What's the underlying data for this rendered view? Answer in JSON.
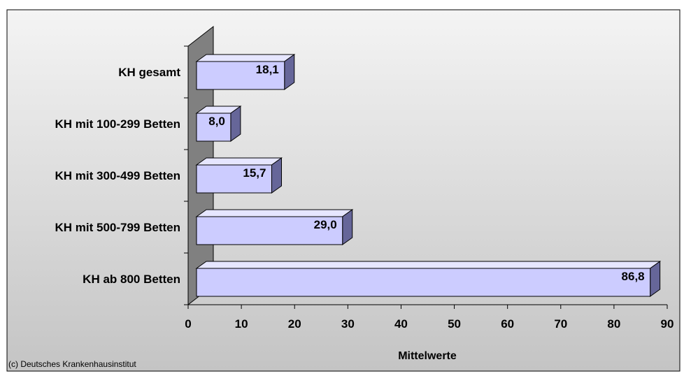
{
  "chart_data": {
    "type": "bar",
    "orientation": "horizontal",
    "style": "3d",
    "categories": [
      "KH gesamt",
      "KH mit 100-299 Betten",
      "KH mit 300-499 Betten",
      "KH mit 500-799 Betten",
      "KH ab 800 Betten"
    ],
    "values": [
      18.1,
      8.0,
      15.7,
      29.0,
      86.8
    ],
    "data_labels": [
      "18,1",
      "8,0",
      "15,7",
      "29,0",
      "86,8"
    ],
    "xlabel": "Mittelwerte",
    "xlim": [
      0,
      90
    ],
    "xticks": [
      0,
      10,
      20,
      30,
      40,
      50,
      60,
      70,
      80,
      90
    ],
    "grid": false,
    "legend": "none",
    "colors": {
      "bar_front": "#ccccff",
      "bar_top": "#e6e6ff",
      "bar_side": "#666699",
      "back_wall": "#808080",
      "plot_bg_top": "#f4f4f4",
      "plot_bg_bottom": "#c4c4c4"
    }
  },
  "footer": {
    "copyright": "(c) Deutsches Krankenhausinstitut"
  }
}
